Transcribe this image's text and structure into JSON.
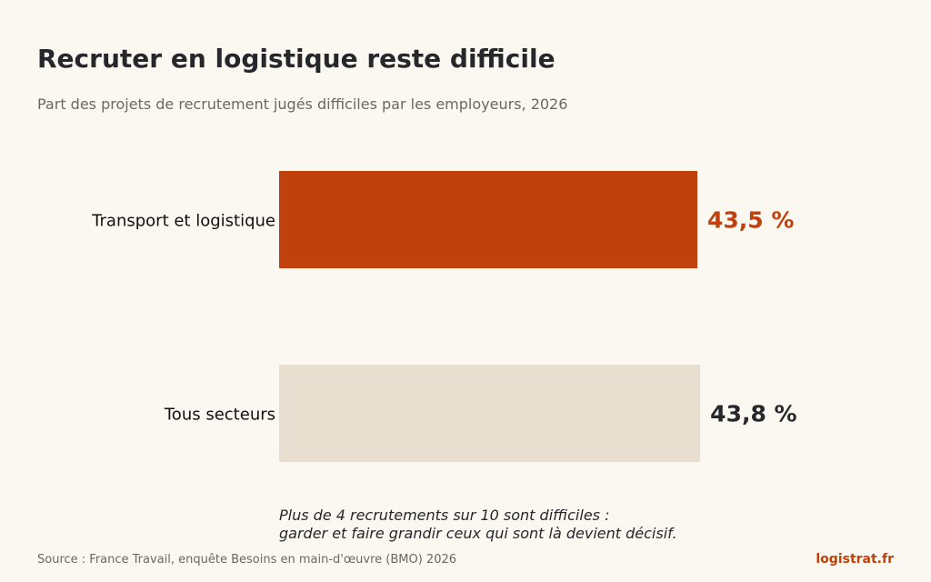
{
  "title": "Recruter en logistique reste difficile",
  "subtitle": "Part des projets de recrutement jugés difficiles par les employeurs, 2026",
  "note": {
    "line1": "Plus de 4 recrutements sur 10 sont difficiles :",
    "line2": "garder et faire grandir ceux qui sont là devient décisif."
  },
  "source": "Source : France Travail, enquête Besoins en main-d'œuvre (BMO) 2026",
  "brand": "logistrat.fr",
  "colors": {
    "highlight": "#c0410c",
    "neutral_bar": "#e9dfd0",
    "neutral_text": "#25272b",
    "background": "#fbf8f2"
  },
  "chart_data": {
    "type": "bar",
    "orientation": "horizontal",
    "categories": [
      "Transport et logistique",
      "Tous secteurs"
    ],
    "values": [
      43.5,
      43.8
    ],
    "value_labels": [
      "43,5 %",
      "43,8 %"
    ],
    "unit": "%",
    "highlight_index": 0,
    "grid": false,
    "legend": "none"
  }
}
